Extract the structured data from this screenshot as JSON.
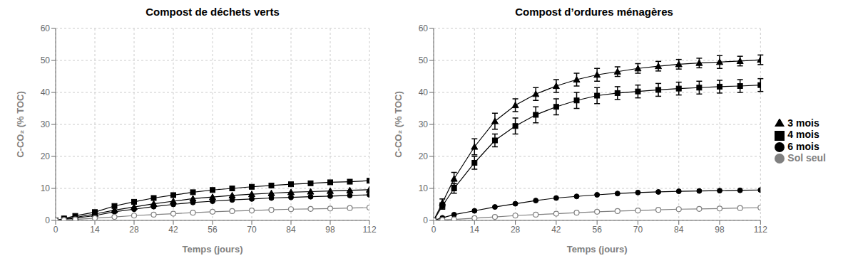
{
  "chart_data": [
    {
      "type": "line",
      "title": "Compost de déchets verts",
      "x_label": "Temps (jours)",
      "y_label": "C-CO₂ (% TOC)",
      "x": [
        0,
        3,
        7,
        14,
        21,
        28,
        35,
        42,
        49,
        56,
        63,
        70,
        77,
        84,
        91,
        98,
        105,
        112
      ],
      "xlim": [
        0,
        112
      ],
      "xticks": [
        0,
        14,
        28,
        42,
        56,
        70,
        84,
        98,
        112
      ],
      "ylim": [
        0,
        60
      ],
      "yticks": [
        0,
        10,
        20,
        30,
        40,
        50,
        60
      ],
      "grid": true,
      "series": [
        {
          "name": "4 mois",
          "color": "#000000",
          "marker": "square",
          "values": [
            0,
            0.6,
            1.4,
            2.6,
            4.5,
            5.8,
            7.0,
            7.9,
            8.8,
            9.5,
            10.0,
            10.5,
            10.9,
            11.3,
            11.6,
            11.9,
            12.1,
            12.4
          ]
        },
        {
          "name": "3 mois",
          "color": "#000000",
          "marker": "triangle",
          "values": [
            0,
            0.4,
            0.9,
            2.0,
            3.2,
            4.2,
            5.2,
            6.0,
            6.8,
            7.3,
            7.8,
            8.2,
            8.5,
            8.8,
            9.0,
            9.2,
            9.4,
            9.6
          ]
        },
        {
          "name": "6 mois",
          "color": "#000000",
          "marker": "circle",
          "values": [
            0,
            0.3,
            0.7,
            1.5,
            2.7,
            3.5,
            4.3,
            5.0,
            5.6,
            6.0,
            6.4,
            6.7,
            7.0,
            7.2,
            7.4,
            7.6,
            7.8,
            8.0
          ]
        },
        {
          "name": "Sol seul",
          "color": "#808080",
          "marker": "open_circle",
          "values": [
            0,
            0.15,
            0.3,
            0.7,
            1.1,
            1.5,
            1.8,
            2.1,
            2.4,
            2.7,
            2.9,
            3.1,
            3.3,
            3.5,
            3.6,
            3.7,
            3.85,
            4.0
          ]
        }
      ]
    },
    {
      "type": "line",
      "title": "Compost d’ordures ménagères",
      "x_label": "Temps (jours)",
      "y_label": "C-CO₂ (% TOC)",
      "x": [
        0,
        3,
        7,
        14,
        21,
        28,
        35,
        42,
        49,
        56,
        63,
        70,
        77,
        84,
        91,
        98,
        105,
        112
      ],
      "xlim": [
        0,
        112
      ],
      "xticks": [
        0,
        14,
        28,
        42,
        56,
        70,
        84,
        98,
        112
      ],
      "ylim": [
        0,
        60
      ],
      "yticks": [
        0,
        10,
        20,
        30,
        40,
        50,
        60
      ],
      "grid": true,
      "legend": "right",
      "series": [
        {
          "name": "3 mois",
          "color": "#000000",
          "marker": "triangle",
          "values": [
            0,
            5.5,
            13.0,
            23.0,
            31.0,
            36.0,
            39.5,
            42.0,
            44.0,
            45.5,
            46.5,
            47.5,
            48.2,
            48.8,
            49.2,
            49.5,
            49.8,
            50.2
          ],
          "errors": [
            0.0,
            1.2,
            2.0,
            2.5,
            2.5,
            2.0,
            2.0,
            2.0,
            2.0,
            2.0,
            1.5,
            1.5,
            1.5,
            1.5,
            1.5,
            2.0,
            1.5,
            1.5
          ]
        },
        {
          "name": "4 mois",
          "color": "#000000",
          "marker": "square",
          "values": [
            0,
            4.5,
            10.0,
            18.0,
            25.0,
            29.5,
            33.0,
            35.5,
            37.5,
            39.0,
            39.8,
            40.3,
            40.8,
            41.2,
            41.5,
            41.8,
            42.0,
            42.3
          ],
          "errors": [
            0.0,
            1.0,
            1.5,
            2.0,
            2.0,
            2.5,
            2.5,
            2.5,
            2.5,
            2.5,
            2.0,
            2.0,
            2.0,
            2.0,
            2.0,
            2.0,
            2.0,
            2.0
          ]
        },
        {
          "name": "6 mois",
          "color": "#000000",
          "marker": "circle",
          "values": [
            0,
            0.8,
            1.8,
            3.0,
            4.2,
            5.2,
            6.2,
            7.0,
            7.5,
            8.0,
            8.4,
            8.7,
            8.9,
            9.1,
            9.2,
            9.3,
            9.4,
            9.5
          ]
        },
        {
          "name": "Sol seul",
          "color": "#808080",
          "marker": "open_circle",
          "values": [
            0,
            0.15,
            0.3,
            0.7,
            1.1,
            1.5,
            1.8,
            2.1,
            2.4,
            2.7,
            2.9,
            3.1,
            3.3,
            3.5,
            3.6,
            3.7,
            3.85,
            4.0
          ]
        }
      ]
    }
  ]
}
